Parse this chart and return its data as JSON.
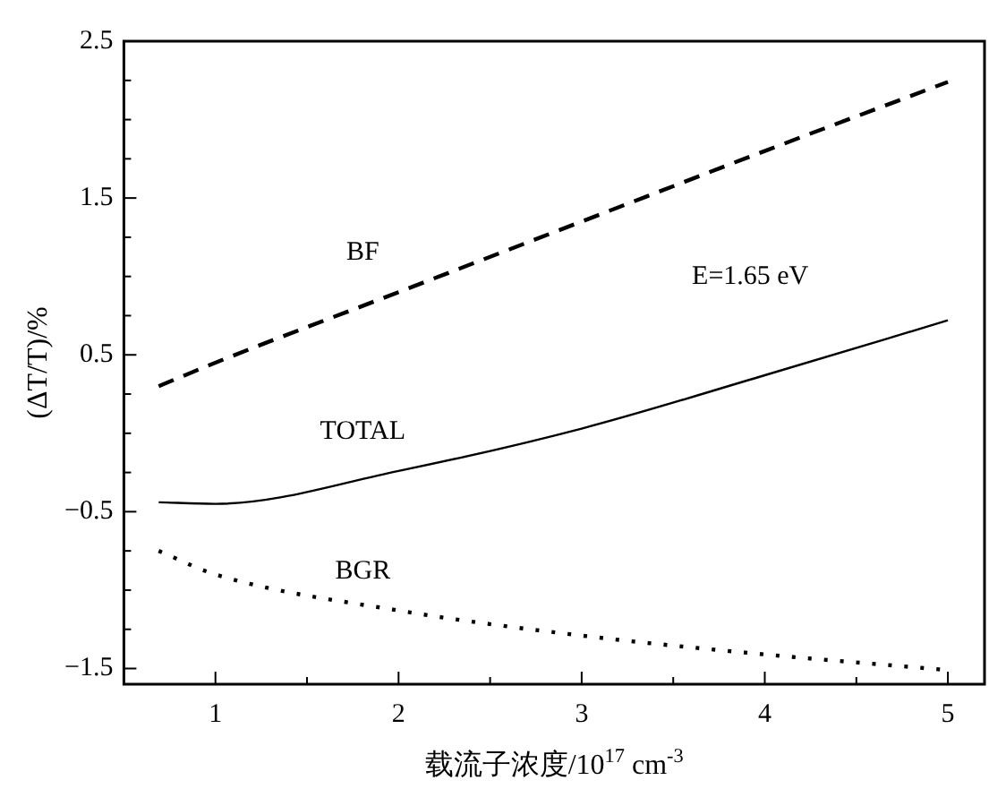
{
  "chart_data": {
    "type": "line",
    "xlabel": "载流子浓度/10$^{17}$ cm$^{-3}$",
    "ylabel": "(ΔT/T)/%",
    "annotations": [
      "E=1.65 eV"
    ],
    "x": [
      0.69,
      1,
      2,
      3,
      4,
      5
    ],
    "series": [
      {
        "name": "BF",
        "color": "#000000",
        "line_style": "dashed",
        "values": [
          0.3,
          0.45,
          0.9,
          1.35,
          1.8,
          2.24
        ]
      },
      {
        "name": "TOTAL",
        "color": "#000000",
        "line_style": "solid",
        "values": [
          -0.44,
          -0.45,
          -0.24,
          0.03,
          0.37,
          0.72
        ]
      },
      {
        "name": "BGR",
        "color": "#000000",
        "line_style": "dotted",
        "values": [
          -0.75,
          -0.9,
          -1.13,
          -1.29,
          -1.41,
          -1.51
        ]
      }
    ],
    "xlim": [
      0.5,
      5.2
    ],
    "ylim": [
      -1.6,
      2.5
    ],
    "xticks": [
      1,
      {
        "value": 1.5,
        "label": null
      },
      2,
      {
        "value": 2.5,
        "label": null
      },
      3,
      {
        "value": 3.5,
        "label": null
      },
      4,
      {
        "value": 4.5,
        "label": null
      },
      5
    ],
    "yticks": [
      {
        "value": -1.5,
        "label": "−1.5"
      },
      {
        "value": -1.25,
        "label": null
      },
      {
        "value": -1,
        "label": null
      },
      {
        "value": -0.75,
        "label": null
      },
      {
        "value": -0.5,
        "label": "−0.5"
      },
      {
        "value": -0.25,
        "label": null
      },
      {
        "value": 0,
        "label": null
      },
      {
        "value": 0.25,
        "label": null
      },
      0.5,
      {
        "value": 0.75,
        "label": null
      },
      {
        "value": 1,
        "label": null
      },
      {
        "value": 1.25,
        "label": null
      },
      1.5,
      {
        "value": 1.75,
        "label": null
      },
      {
        "value": 2,
        "label": null
      },
      {
        "value": 2.25,
        "label": null
      },
      2.5
    ],
    "grid": false,
    "legend": false,
    "marker": "none"
  }
}
